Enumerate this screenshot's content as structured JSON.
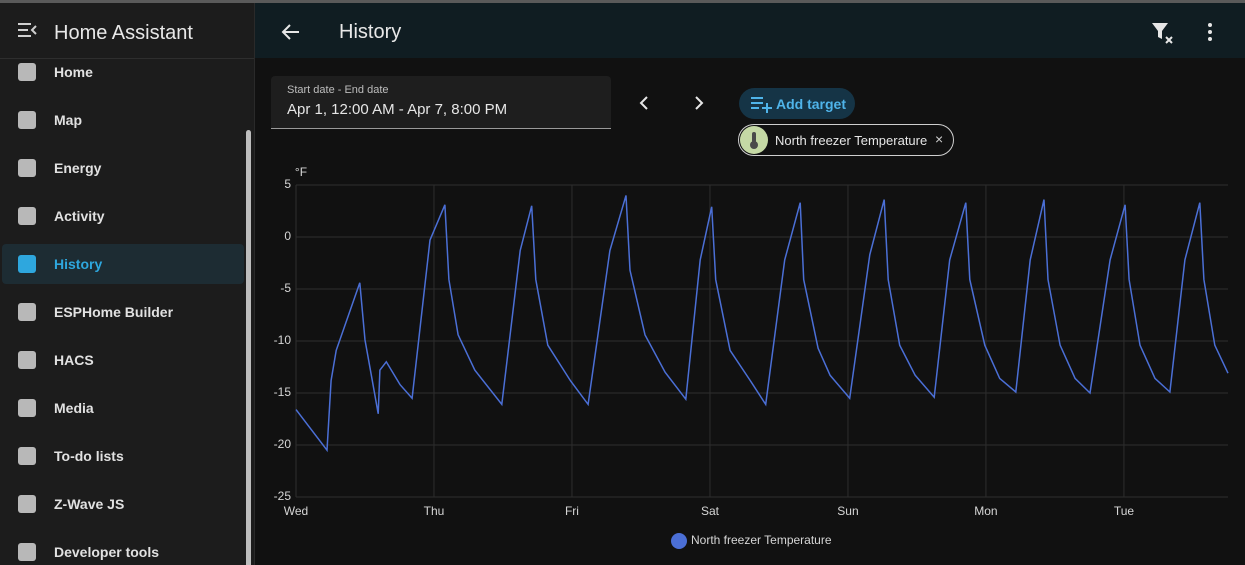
{
  "sidebar": {
    "title": "Home Assistant",
    "items": [
      "Home",
      "Map",
      "Energy",
      "Activity",
      "History",
      "ESPHome Builder",
      "HACS",
      "Media",
      "To-do lists",
      "Z-Wave JS",
      "Developer tools"
    ],
    "active": "History"
  },
  "header": {
    "title": "History"
  },
  "date_picker": {
    "label": "Start date - End date",
    "value": "Apr 1, 12:00 AM - Apr 7, 8:00 PM"
  },
  "add_target": "Add target",
  "target_chip": "North freezer Temperature",
  "chart_data": {
    "type": "line",
    "y_label": "°F",
    "x": [
      0,
      5.4,
      6.1,
      7.0,
      11.1,
      12.0,
      13.2,
      14.3,
      14.6,
      15.7,
      18.1,
      20.2,
      23.3,
      25.9,
      26.6,
      28.2,
      31.1,
      35.8,
      39.0,
      41.0,
      41.7,
      43.8,
      47.7,
      50.8,
      54.6,
      57.4,
      58.1,
      60.7,
      64.2,
      67.8,
      70.3,
      72.3,
      73.0,
      75.5,
      79.0,
      81.7,
      85.0,
      87.7,
      88.3,
      90.8,
      92.9,
      96.3,
      99.8,
      102.3,
      103.0,
      105.0,
      107.7,
      111.0,
      113.7,
      116.5,
      117.2,
      119.8,
      122.4,
      125.2,
      127.7,
      130.1,
      130.8,
      132.9,
      135.5,
      138.1,
      141.6,
      144.2,
      144.9,
      146.8,
      149.4,
      152.0,
      154.6,
      157.2,
      157.9,
      159.8,
      162.1
    ],
    "series": [
      {
        "name": "North freezer Temperature",
        "color": "#4b6fd6",
        "values": [
          -16.6,
          -20.5,
          -13.8,
          -10.9,
          -4.4,
          -9.9,
          -13.6,
          -17.0,
          -12.8,
          -12.0,
          -14.2,
          -15.5,
          -0.3,
          3.1,
          -4.1,
          -9.4,
          -12.8,
          -16.1,
          -1.3,
          3.0,
          -4.1,
          -10.4,
          -13.8,
          -16.1,
          -1.3,
          4.0,
          -3.2,
          -9.4,
          -13.0,
          -15.6,
          -2.2,
          2.9,
          -4.1,
          -10.9,
          -13.8,
          -16.1,
          -2.2,
          3.3,
          -4.1,
          -10.7,
          -13.3,
          -15.5,
          -1.7,
          3.6,
          -4.1,
          -10.4,
          -13.3,
          -15.4,
          -2.2,
          3.3,
          -4.1,
          -10.4,
          -13.6,
          -14.9,
          -2.2,
          3.6,
          -4.1,
          -10.4,
          -13.6,
          -15.0,
          -2.2,
          3.1,
          -4.1,
          -10.4,
          -13.6,
          -14.9,
          -2.2,
          3.3,
          -4.1,
          -10.4,
          -13.1
        ]
      }
    ],
    "xlim": [
      0,
      162.1
    ],
    "xticks": [
      {
        "value": 0,
        "label": "Wed"
      },
      {
        "value": 24,
        "label": "Thu"
      },
      {
        "value": 48,
        "label": "Fri"
      },
      {
        "value": 72,
        "label": "Sat"
      },
      {
        "value": 96,
        "label": "Sun"
      },
      {
        "value": 120,
        "label": "Mon"
      },
      {
        "value": 144,
        "label": "Tue"
      }
    ],
    "ylim": [
      -25,
      5
    ],
    "yticks": [
      5,
      0,
      -5,
      -10,
      -15,
      -20,
      -25
    ],
    "grid": true,
    "legend": "bottom"
  }
}
